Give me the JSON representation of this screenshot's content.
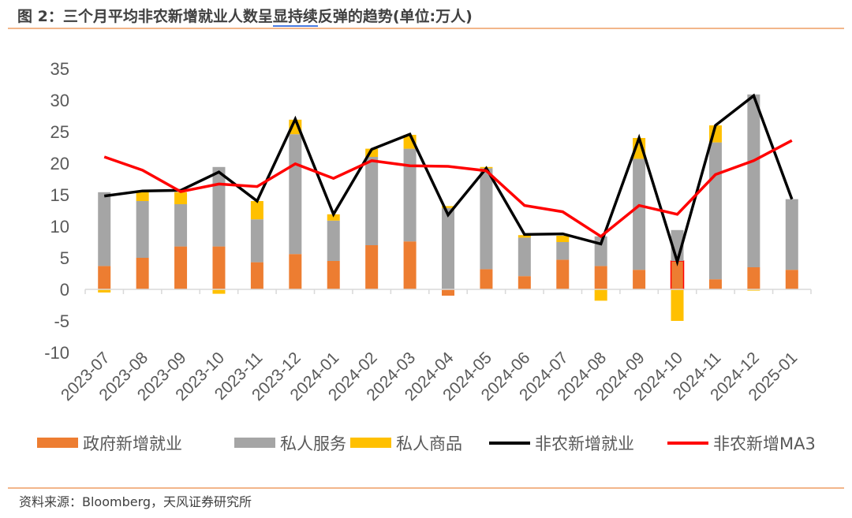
{
  "title": {
    "part1": "图 2：三个月平均非农新增就业人数呈",
    "part2": "显持续",
    "part3": "反弹的趋势(单位:万人)"
  },
  "source": "资料来源：Bloomberg，天风证券研究所",
  "chart_data": {
    "type": "bar",
    "subtype": "stacked bar + line",
    "categories": [
      "2023-07",
      "2023-08",
      "2023-09",
      "2023-10",
      "2023-11",
      "2023-12",
      "2024-01",
      "2024-02",
      "2024-03",
      "2024-04",
      "2024-05",
      "2024-06",
      "2024-07",
      "2024-08",
      "2024-09",
      "2024-10",
      "2024-11",
      "2024-12",
      "2025-01"
    ],
    "ylim": [
      -10,
      35
    ],
    "yticks": [
      -10,
      -5,
      0,
      5,
      10,
      15,
      20,
      25,
      30,
      35
    ],
    "grid": false,
    "legend_position": "bottom",
    "highlighted_category": "2024-10",
    "series": [
      {
        "name": "政府新增就业",
        "kind": "bar",
        "color": "#ED7D31",
        "values": [
          3.7,
          5.0,
          6.8,
          6.8,
          4.3,
          5.6,
          4.5,
          7.0,
          7.6,
          -1.0,
          3.2,
          2.1,
          4.7,
          3.7,
          3.1,
          4.5,
          1.6,
          3.5,
          3.1
        ]
      },
      {
        "name": "私人服务",
        "kind": "bar",
        "color": "#A5A5A5",
        "values": [
          11.7,
          9.0,
          6.7,
          12.6,
          6.8,
          19.0,
          6.4,
          14.0,
          14.7,
          12.9,
          16.0,
          6.1,
          2.8,
          4.7,
          17.6,
          4.9,
          21.7,
          27.4,
          11.2
        ]
      },
      {
        "name": "私人商品",
        "kind": "bar",
        "color": "#FFC000",
        "values": [
          -0.5,
          1.5,
          1.9,
          -0.7,
          2.9,
          2.3,
          1.0,
          1.3,
          2.2,
          0.3,
          0.2,
          0.4,
          1.0,
          -1.8,
          3.3,
          -5.0,
          2.7,
          -0.2,
          0.0
        ]
      },
      {
        "name": "非农新增就业",
        "kind": "line",
        "color": "#000000",
        "values": [
          14.8,
          15.6,
          15.7,
          18.6,
          14.0,
          27.0,
          11.9,
          22.2,
          24.6,
          11.8,
          19.2,
          8.7,
          8.8,
          7.2,
          24.0,
          4.4,
          26.0,
          30.7,
          14.3
        ]
      },
      {
        "name": "非农新增MA3",
        "kind": "line",
        "color": "#FF0000",
        "values": [
          21.0,
          18.9,
          15.5,
          16.7,
          16.3,
          19.9,
          17.6,
          20.4,
          19.6,
          19.5,
          18.8,
          13.3,
          12.3,
          8.4,
          13.3,
          11.9,
          18.2,
          20.4,
          23.6
        ]
      }
    ]
  }
}
